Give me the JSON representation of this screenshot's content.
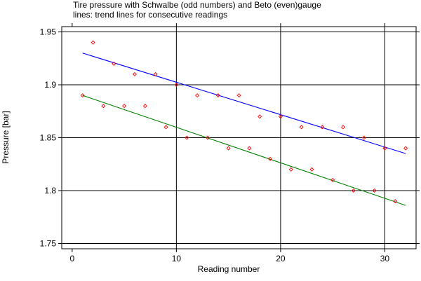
{
  "chart_data": {
    "type": "scatter",
    "title_lines": [
      "Tire pressure with Schwalbe (odd numbers) and Beto (even)gauge",
      "lines: trend lines for consecutive readings"
    ],
    "xlabel": "Reading number",
    "ylabel": "Pressure [bar]",
    "xlim": [
      -1,
      33
    ],
    "ylim": [
      1.745,
      1.955
    ],
    "x_ticks": [
      0,
      10,
      20,
      30
    ],
    "y_ticks": [
      1.75,
      1.8,
      1.85,
      1.9,
      1.95
    ],
    "y_tick_labels": [
      "1.75",
      "1.8",
      "1.85",
      "1.9",
      "1.95"
    ],
    "grid": true,
    "point_color": "#ff0000",
    "points": [
      {
        "x": 1,
        "y": 1.89
      },
      {
        "x": 2,
        "y": 1.94
      },
      {
        "x": 3,
        "y": 1.88
      },
      {
        "x": 4,
        "y": 1.92
      },
      {
        "x": 5,
        "y": 1.88
      },
      {
        "x": 6,
        "y": 1.91
      },
      {
        "x": 7,
        "y": 1.88
      },
      {
        "x": 8,
        "y": 1.91
      },
      {
        "x": 9,
        "y": 1.86
      },
      {
        "x": 10,
        "y": 1.9
      },
      {
        "x": 11,
        "y": 1.85
      },
      {
        "x": 12,
        "y": 1.89
      },
      {
        "x": 13,
        "y": 1.85
      },
      {
        "x": 14,
        "y": 1.89
      },
      {
        "x": 15,
        "y": 1.84
      },
      {
        "x": 16,
        "y": 1.89
      },
      {
        "x": 17,
        "y": 1.84
      },
      {
        "x": 18,
        "y": 1.87
      },
      {
        "x": 19,
        "y": 1.83
      },
      {
        "x": 20,
        "y": 1.87
      },
      {
        "x": 21,
        "y": 1.82
      },
      {
        "x": 22,
        "y": 1.86
      },
      {
        "x": 23,
        "y": 1.82
      },
      {
        "x": 24,
        "y": 1.86
      },
      {
        "x": 25,
        "y": 1.81
      },
      {
        "x": 26,
        "y": 1.86
      },
      {
        "x": 27,
        "y": 1.8
      },
      {
        "x": 28,
        "y": 1.85
      },
      {
        "x": 29,
        "y": 1.8
      },
      {
        "x": 30,
        "y": 1.84
      },
      {
        "x": 31,
        "y": 1.79
      },
      {
        "x": 32,
        "y": 1.84
      }
    ],
    "trend_lines": [
      {
        "color": "#0000ff",
        "x": [
          1,
          32
        ],
        "y": [
          1.93,
          1.835
        ]
      },
      {
        "color": "#008000",
        "x": [
          1,
          32
        ],
        "y": [
          1.89,
          1.786
        ]
      }
    ]
  }
}
